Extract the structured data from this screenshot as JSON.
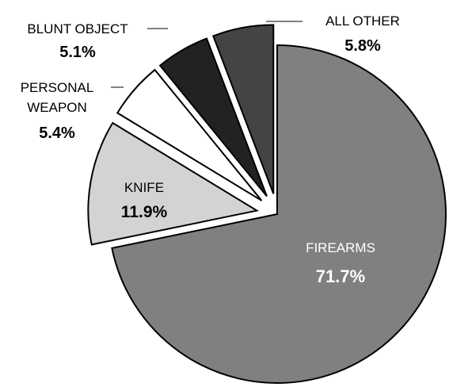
{
  "chart_data": {
    "type": "pie",
    "slices": [
      {
        "label": "FIREARMS",
        "value": 71.7,
        "display": "71.7%",
        "color": "#808080"
      },
      {
        "label": "KNIFE",
        "value": 11.9,
        "display": "11.9%",
        "color": "#d3d3d3"
      },
      {
        "label": "PERSONAL WEAPON",
        "value": 5.4,
        "display": "5.4%",
        "color": "#ffffff"
      },
      {
        "label": "BLUNT OBJECT",
        "value": 5.1,
        "display": "5.1%",
        "color": "#222222"
      },
      {
        "label": "ALL OTHER",
        "value": 5.8,
        "display": "5.8%",
        "color": "#444444"
      }
    ],
    "exploded": [
      "KNIFE",
      "PERSONAL WEAPON",
      "BLUNT OBJECT",
      "ALL OTHER"
    ]
  }
}
